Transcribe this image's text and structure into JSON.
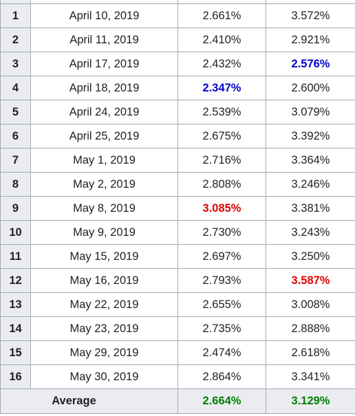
{
  "rows": [
    {
      "n": "1",
      "date": "April 10, 2019",
      "a": "2.661%",
      "b": "3.572%"
    },
    {
      "n": "2",
      "date": "April 11, 2019",
      "a": "2.410%",
      "b": "2.921%"
    },
    {
      "n": "3",
      "date": "April 17, 2019",
      "a": "2.432%",
      "b": "2.576%"
    },
    {
      "n": "4",
      "date": "April 18, 2019",
      "a": "2.347%",
      "b": "2.600%"
    },
    {
      "n": "5",
      "date": "April 24, 2019",
      "a": "2.539%",
      "b": "3.079%"
    },
    {
      "n": "6",
      "date": "April 25, 2019",
      "a": "2.675%",
      "b": "3.392%"
    },
    {
      "n": "7",
      "date": "May 1, 2019",
      "a": "2.716%",
      "b": "3.364%"
    },
    {
      "n": "8",
      "date": "May 2, 2019",
      "a": "2.808%",
      "b": "3.246%"
    },
    {
      "n": "9",
      "date": "May 8, 2019",
      "a": "3.085%",
      "b": "3.381%"
    },
    {
      "n": "10",
      "date": "May 9, 2019",
      "a": "2.730%",
      "b": "3.243%"
    },
    {
      "n": "11",
      "date": "May 15, 2019",
      "a": "2.697%",
      "b": "3.250%"
    },
    {
      "n": "12",
      "date": "May 16, 2019",
      "a": "2.793%",
      "b": "3.587%"
    },
    {
      "n": "13",
      "date": "May 22, 2019",
      "a": "2.655%",
      "b": "3.008%"
    },
    {
      "n": "14",
      "date": "May 23, 2019",
      "a": "2.735%",
      "b": "2.888%"
    },
    {
      "n": "15",
      "date": "May 29, 2019",
      "a": "2.474%",
      "b": "2.618%"
    },
    {
      "n": "16",
      "date": "May 30, 2019",
      "a": "2.864%",
      "b": "3.341%"
    }
  ],
  "average": {
    "label": "Average",
    "a": "2.664%",
    "b": "3.129%"
  },
  "colors": {
    "min_highlight": "#0000cc",
    "max_highlight": "#dd0000",
    "average_highlight": "#008000",
    "header_background": "#eaecf0",
    "border": "#a2a9b1"
  }
}
